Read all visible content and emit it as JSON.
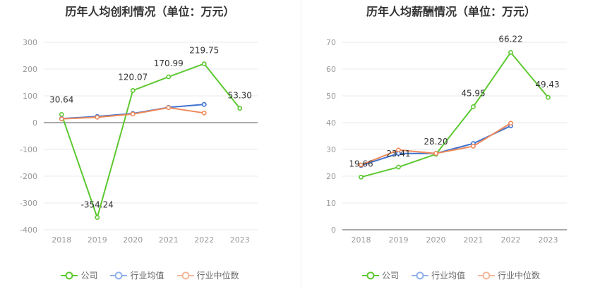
{
  "colors": {
    "company": "#5dc830",
    "industry_avg": "#3f72d0",
    "industry_median": "#ef8a5b",
    "grid": "#e6e8ee",
    "axis": "#555555",
    "tick": "#999999",
    "label": "#333333"
  },
  "chart_data": [
    {
      "type": "line",
      "title": "历年人均创利情况（单位：万元）",
      "categories": [
        "2018",
        "2019",
        "2020",
        "2021",
        "2022",
        "2023"
      ],
      "ylim": [
        -400,
        300
      ],
      "yticks": [
        300,
        200,
        100,
        0,
        -100,
        -200,
        -300,
        -400
      ],
      "grid": true,
      "legend_position": "bottom",
      "series": [
        {
          "key": "company",
          "name": "公司",
          "values": [
            30.64,
            -354.24,
            120.07,
            170.99,
            219.75,
            53.3
          ],
          "labels": [
            "30.64",
            "-354.24",
            "120.07",
            "170.99",
            "219.75",
            "53.30"
          ]
        },
        {
          "key": "industry_avg",
          "name": "行业均值",
          "values": [
            15,
            23,
            34,
            57,
            68,
            null
          ]
        },
        {
          "key": "industry_median",
          "name": "行业中位数",
          "values": [
            14,
            20,
            32,
            56,
            36,
            null
          ]
        }
      ]
    },
    {
      "type": "line",
      "title": "历年人均薪酬情况（单位：万元）",
      "categories": [
        "2018",
        "2019",
        "2020",
        "2021",
        "2022",
        "2023"
      ],
      "ylim": [
        0,
        70
      ],
      "yticks": [
        70,
        60,
        50,
        40,
        30,
        20,
        10,
        0
      ],
      "grid": true,
      "legend_position": "bottom",
      "series": [
        {
          "key": "company",
          "name": "公司",
          "values": [
            19.66,
            23.41,
            28.2,
            45.95,
            66.22,
            49.43
          ],
          "labels": [
            "19.66",
            "23.41",
            "28.20",
            "45.95",
            "66.22",
            "49.43"
          ]
        },
        {
          "key": "industry_avg",
          "name": "行业均值",
          "values": [
            24.0,
            28.5,
            28.5,
            32.2,
            38.8,
            null
          ]
        },
        {
          "key": "industry_median",
          "name": "行业中位数",
          "values": [
            24.2,
            29.8,
            28.5,
            31.2,
            39.8,
            null
          ]
        }
      ]
    }
  ]
}
